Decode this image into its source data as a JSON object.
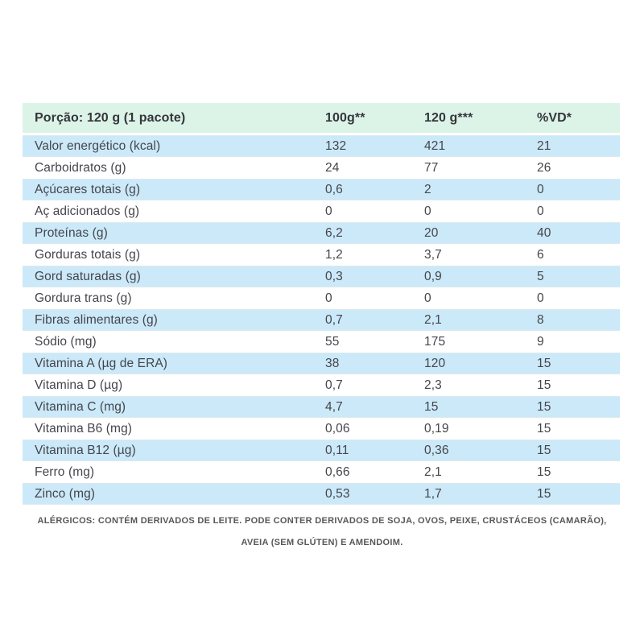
{
  "table": {
    "header": {
      "portion": "Porção: 120 g (1 pacote)",
      "col_100g": "100g**",
      "col_120g": "120 g***",
      "col_vd": "%VD*"
    },
    "rows": [
      {
        "label": "Valor energético (kcal)",
        "v100": "132",
        "v120": "421",
        "vd": "21"
      },
      {
        "label": "Carboidratos (g)",
        "v100": "24",
        "v120": "77",
        "vd": "26"
      },
      {
        "label": "Açúcares totais (g)",
        "v100": "0,6",
        "v120": "2",
        "vd": "0"
      },
      {
        "label": "Aç adicionados (g)",
        "v100": "0",
        "v120": "0",
        "vd": "0"
      },
      {
        "label": "Proteínas (g)",
        "v100": "6,2",
        "v120": "20",
        "vd": "40"
      },
      {
        "label": "Gorduras totais (g)",
        "v100": "1,2",
        "v120": "3,7",
        "vd": "6"
      },
      {
        "label": "Gord saturadas (g)",
        "v100": "0,3",
        "v120": "0,9",
        "vd": "5"
      },
      {
        "label": "Gordura trans (g)",
        "v100": "0",
        "v120": "0",
        "vd": "0"
      },
      {
        "label": "Fibras alimentares (g)",
        "v100": "0,7",
        "v120": "2,1",
        "vd": "8"
      },
      {
        "label": "Sódio (mg)",
        "v100": "55",
        "v120": "175",
        "vd": "9"
      },
      {
        "label": "Vitamina A (µg de ERA)",
        "v100": "38",
        "v120": "120",
        "vd": "15"
      },
      {
        "label": "Vitamina D (µg)",
        "v100": "0,7",
        "v120": "2,3",
        "vd": "15"
      },
      {
        "label": "Vitamina C (mg)",
        "v100": "4,7",
        "v120": "15",
        "vd": "15"
      },
      {
        "label": "Vitamina B6 (mg)",
        "v100": "0,06",
        "v120": "0,19",
        "vd": "15"
      },
      {
        "label": "Vitamina B12 (µg)",
        "v100": "0,11",
        "v120": "0,36",
        "vd": "15"
      },
      {
        "label": "Ferro (mg)",
        "v100": "0,66",
        "v120": "2,1",
        "vd": "15"
      },
      {
        "label": "Zinco (mg)",
        "v100": "0,53",
        "v120": "1,7",
        "vd": "15"
      }
    ]
  },
  "footer": {
    "line1": "ALÉRGICOS: CONTÉM DERIVADOS DE LEITE. PODE CONTER DERIVADOS DE SOJA, OVOS, PEIXE, CRUSTÁCEOS (CAMARÃO),",
    "line2": "AVEIA (SEM GLÚTEN) E AMENDOIM."
  },
  "colors": {
    "page_bg": "#ffffff",
    "header_bg": "#dcf4e7",
    "row_alt_bg": "#cbe9f8",
    "text": "#45454c",
    "footer_text": "#575757"
  }
}
